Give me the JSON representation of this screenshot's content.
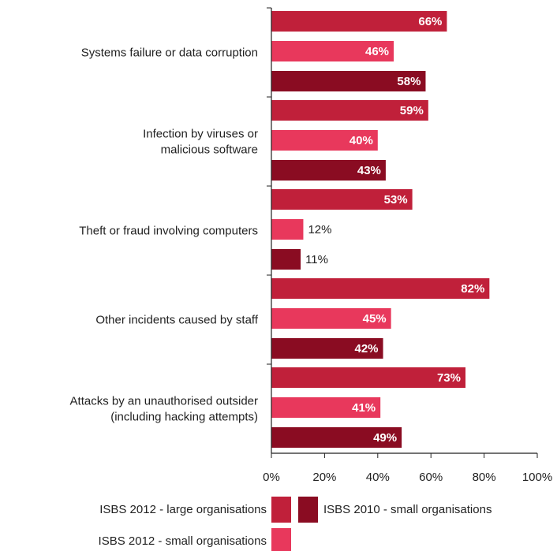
{
  "chart_data": {
    "type": "bar",
    "orientation": "horizontal",
    "categories": [
      [
        "Systems failure or data corruption"
      ],
      [
        "Infection by viruses or",
        "malicious software"
      ],
      [
        "Theft or fraud involving computers"
      ],
      [
        "Other incidents caused by staff"
      ],
      [
        "Attacks by an unauthorised outsider",
        "(including hacking attempts)"
      ]
    ],
    "series": [
      {
        "name": "ISBS 2012 - large organisations",
        "color": "#c0203a",
        "values": [
          66,
          59,
          53,
          82,
          73
        ]
      },
      {
        "name": "ISBS 2012 - small organisations",
        "color": "#e8385c",
        "values": [
          46,
          40,
          12,
          45,
          41
        ]
      },
      {
        "name": "ISBS 2010 - small organisations",
        "color": "#8a0c22",
        "values": [
          58,
          43,
          11,
          42,
          49
        ]
      }
    ],
    "value_suffix": "%",
    "xlim": [
      0,
      100
    ],
    "x_ticks": [
      "0%",
      "20%",
      "40%",
      "60%",
      "80%",
      "100%"
    ],
    "grid": false,
    "legend_position": "bottom"
  }
}
